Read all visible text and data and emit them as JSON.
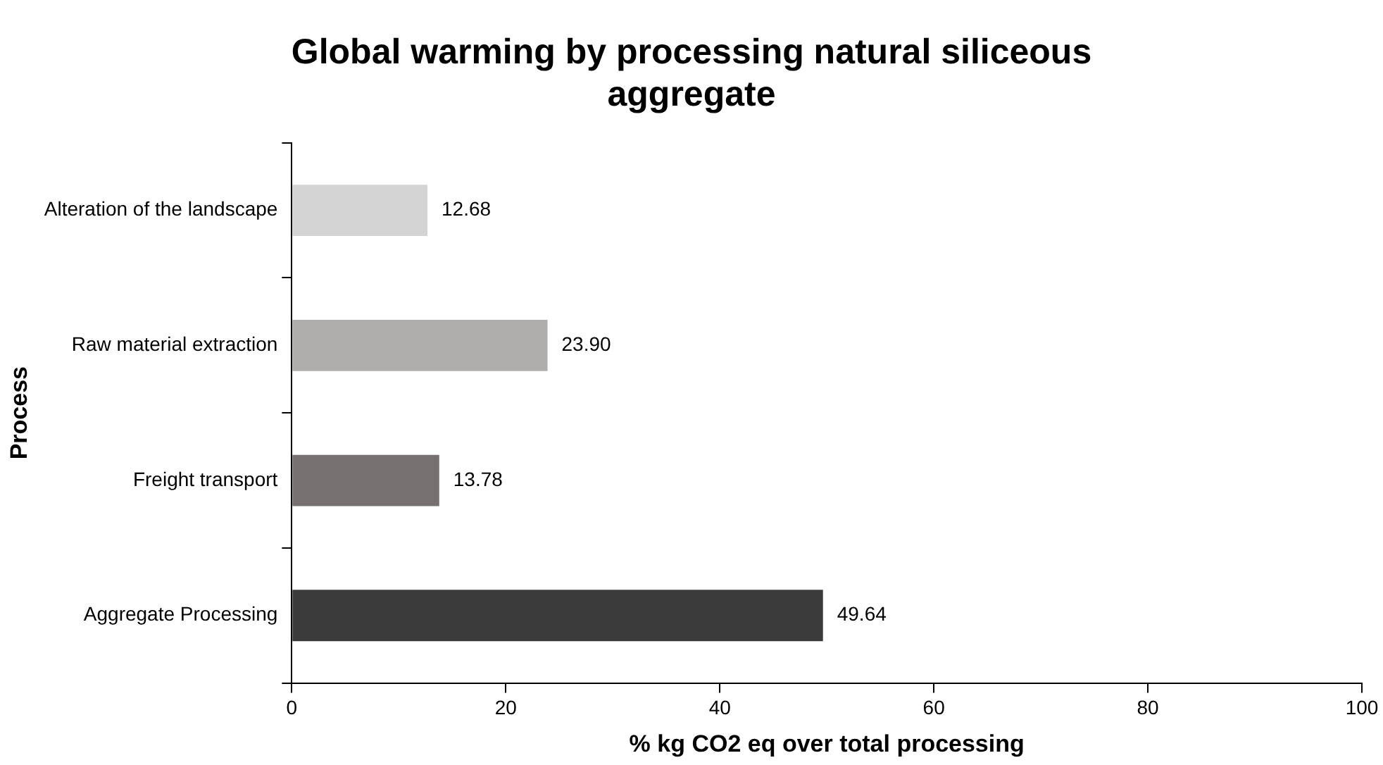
{
  "chart_data": {
    "type": "bar",
    "orientation": "horizontal",
    "title": "Global warming by processing natural siliceous aggregate",
    "xlabel": "% kg CO2 eq over total processing",
    "ylabel": "Process",
    "categories": [
      "Alteration of the landscape",
      "Raw material extraction",
      "Freight transport",
      "Aggregate Processing"
    ],
    "values": [
      12.68,
      23.9,
      13.78,
      49.64
    ],
    "value_labels": [
      "12.68",
      "23.90",
      "13.78",
      "49.64"
    ],
    "colors": [
      "#d4d4d4",
      "#b0adad",
      "#767170",
      "#3b3b3b"
    ],
    "xlim": [
      0,
      100
    ],
    "xticks": [
      0,
      20,
      40,
      60,
      80,
      100
    ],
    "grid": false,
    "legend": false
  }
}
